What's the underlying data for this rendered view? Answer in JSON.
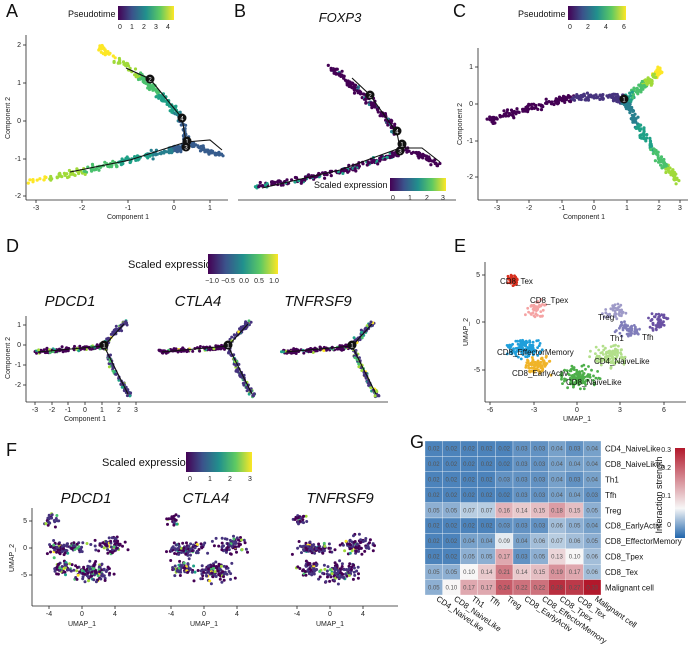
{
  "panels": {
    "A": {
      "label": "A",
      "legend_title": "Pseudotime",
      "legend_ticks": [
        "0",
        "1",
        "2",
        "3",
        "4"
      ],
      "xlabel": "Component 1",
      "ylabel": "Component 2",
      "xticks": [
        "-3",
        "-2",
        "-1",
        "0",
        "1"
      ],
      "yticks": [
        "-2",
        "-1",
        "0",
        "1",
        "2"
      ],
      "branch_points": [
        "1",
        "2",
        "3",
        "4"
      ]
    },
    "B": {
      "label": "B",
      "title": "FOXP3",
      "legend_title": "Scaled expression",
      "legend_ticks": [
        "0",
        "1",
        "2",
        "3"
      ],
      "branch_points": [
        "1",
        "2",
        "3",
        "4"
      ]
    },
    "C": {
      "label": "C",
      "legend_title": "Pseudotime",
      "legend_ticks": [
        "0",
        "2",
        "4",
        "6"
      ],
      "xlabel": "Component 1",
      "ylabel": "Component 2",
      "xticks": [
        "-3",
        "-2",
        "-1",
        "0",
        "1",
        "2",
        "3"
      ],
      "yticks": [
        "-2",
        "-1",
        "0",
        "1"
      ],
      "branch_points": [
        "1"
      ]
    },
    "D": {
      "label": "D",
      "legend_title": "Scaled expression",
      "legend_ticks": [
        "−1.0",
        "−0.5",
        "0.0",
        "0.5",
        "1.0"
      ],
      "genes": [
        "PDCD1",
        "CTLA4",
        "TNFRSF9"
      ],
      "xlabel": "Component 1",
      "ylabel": "Component 2",
      "xticks": [
        "-3",
        "-2",
        "-1",
        "0",
        "1",
        "2",
        "3"
      ],
      "yticks": [
        "-2",
        "-1",
        "0",
        "1"
      ],
      "branch_points": [
        "1"
      ]
    },
    "E": {
      "label": "E",
      "xlabel": "UMAP_1",
      "ylabel": "UMAP_2",
      "xticks": [
        "-6",
        "-3",
        "0",
        "3",
        "6"
      ],
      "yticks": [
        "-5",
        "0",
        "5"
      ],
      "clusters": [
        {
          "name": "CD8_Tex",
          "color": "#d7301f"
        },
        {
          "name": "CD8_Tpex",
          "color": "#f5a3a3"
        },
        {
          "name": "Treg",
          "color": "#9e9ac8"
        },
        {
          "name": "Th1",
          "color": "#807dba"
        },
        {
          "name": "Tfh",
          "color": "#6a51a3"
        },
        {
          "name": "CD8_EffectorMemory",
          "color": "#1f9fdb"
        },
        {
          "name": "CD4_NaiveLike",
          "color": "#b2df8a"
        },
        {
          "name": "CD8_EarlyActiv",
          "color": "#f0b429"
        },
        {
          "name": "CD8_NaiveLike",
          "color": "#4daf4a"
        }
      ]
    },
    "F": {
      "label": "F",
      "legend_title": "Scaled expression",
      "legend_ticks": [
        "0",
        "1",
        "2",
        "3"
      ],
      "genes": [
        "PDCD1",
        "CTLA4",
        "TNFRSF9"
      ],
      "xlabel": "UMAP_1",
      "ylabel": "UMAP_2",
      "xticks": [
        "-4",
        "0",
        "4"
      ],
      "yticks": [
        "-5",
        "0",
        "5"
      ]
    },
    "G": {
      "label": "G",
      "legend_title": "Interaction strength",
      "legend_ticks": [
        "0",
        "0.1",
        "0.2",
        "0.3"
      ]
    }
  },
  "chart_data": [
    {
      "type": "heatmap",
      "panel": "G",
      "title": "",
      "rows": [
        "CD4_NaiveLike",
        "CD8_NaiveLike",
        "Th1",
        "Tfh",
        "Treg",
        "CD8_EarlyActiv",
        "CD8_EffectorMemory",
        "CD8_Tpex",
        "CD8_Tex",
        "Malignant cell"
      ],
      "cols": [
        "CD4_NaiveLike",
        "CD8_NaiveLike",
        "Th1",
        "Tfh",
        "Treg",
        "CD8_EarlyActiv",
        "CD8_EffectorMemory",
        "CD8_Tpex",
        "CD8_Tex",
        "Malignant cell"
      ],
      "values": [
        [
          0.02,
          0.02,
          0.02,
          0.02,
          0.02,
          0.03,
          0.03,
          0.04,
          0.03,
          0.04
        ],
        [
          0.02,
          0.02,
          0.02,
          0.02,
          0.02,
          0.03,
          0.03,
          0.04,
          0.04,
          0.04
        ],
        [
          0.02,
          0.02,
          0.02,
          0.02,
          0.03,
          0.03,
          0.03,
          0.04,
          0.03,
          0.04
        ],
        [
          0.02,
          0.02,
          0.02,
          0.02,
          0.02,
          0.03,
          0.03,
          0.04,
          0.04,
          0.03
        ],
        [
          0.05,
          0.05,
          0.07,
          0.07,
          0.16,
          0.14,
          0.15,
          0.18,
          0.15,
          0.05
        ],
        [
          0.02,
          0.02,
          0.02,
          0.02,
          0.03,
          0.03,
          0.03,
          0.06,
          0.05,
          0.04
        ],
        [
          0.02,
          0.02,
          0.04,
          0.04,
          0.09,
          0.04,
          0.06,
          0.07,
          0.06,
          0.05
        ],
        [
          0.02,
          0.02,
          0.05,
          0.05,
          0.17,
          0.03,
          0.05,
          0.13,
          0.1,
          0.06
        ],
        [
          0.05,
          0.05,
          0.1,
          0.14,
          0.21,
          0.14,
          0.15,
          0.19,
          0.17,
          0.06
        ],
        [
          0.05,
          0.1,
          0.17,
          0.17,
          0.24,
          0.22,
          0.22,
          0.28,
          0.27,
          0.33
        ]
      ],
      "color_scale": {
        "min": 0,
        "max": 0.3,
        "low": "#2166ac",
        "mid": "#f7f7f7",
        "high": "#b2182b"
      }
    }
  ]
}
